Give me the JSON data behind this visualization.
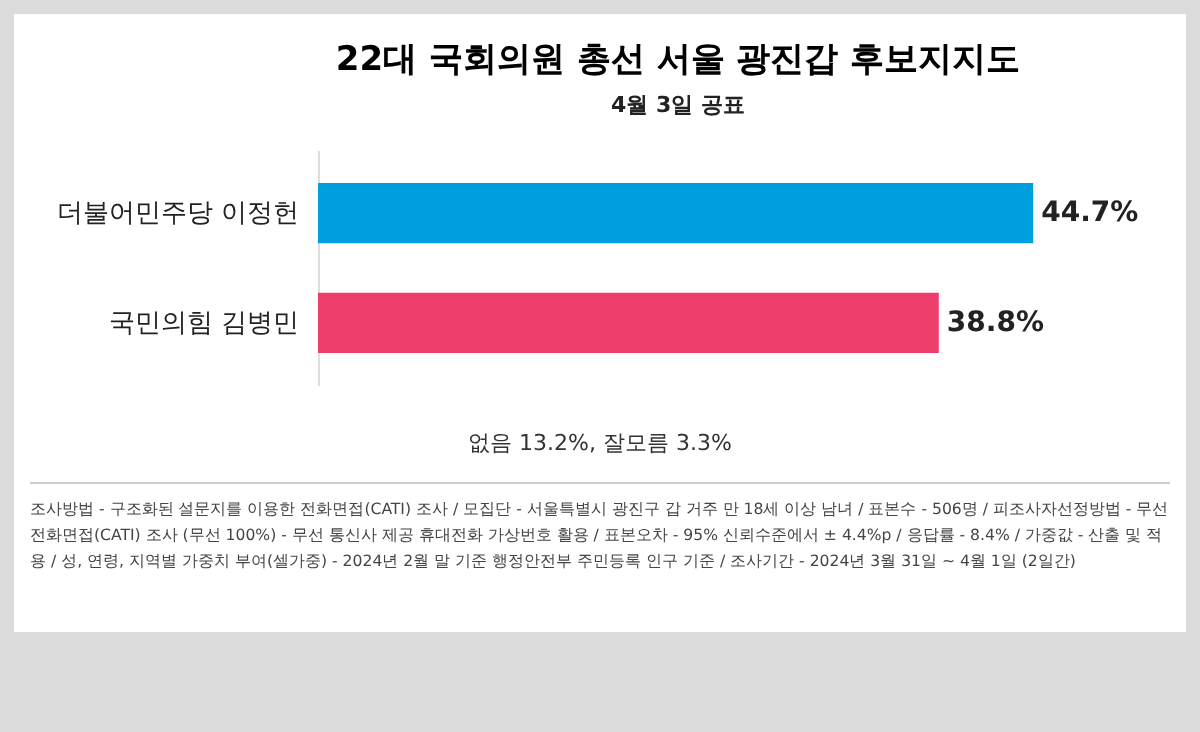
{
  "chart_data": {
    "type": "bar",
    "orientation": "horizontal",
    "title": "22대 국회의원 총선 서울 광진갑 후보지지도",
    "subtitle": "4월 3일 공표",
    "categories": [
      "더불어민주당 이정헌",
      "국민의힘 김병민"
    ],
    "values": [
      44.7,
      38.8
    ],
    "colors": [
      "#009fe0",
      "#ee3f6c"
    ],
    "value_labels": [
      "44.7%",
      "38.8%"
    ],
    "annotations": [
      "없음 13.2%, 잘모름 3.3%",
      "조사방법 - 구조화된 설문지를 이용한 전화면접(CATI) 조사 / 모집단 - 서울특별시 광진구 갑 거주 만 18세 이상 남녀 / 표본수 - 506명 / 피조사자선정방법 - 무선 전화면접(CATI) 조사 (무선 100%) - 무선 통신사 제공 휴대전화 가상번호 활용 / 표본오차 - 95% 신뢰수준에서 ± 4.4%p / 응답률 - 8.4% / 가중값 - 산출 및 적용 / 성, 연령, 지역별 가중치 부여(셀가중) - 2024년 2월 말 기준 행정안전부 주민등록 인구 기준 / 조사기간 - 2024년 3월 31일 ~ 4월 1일 (2일간)"
    ]
  }
}
